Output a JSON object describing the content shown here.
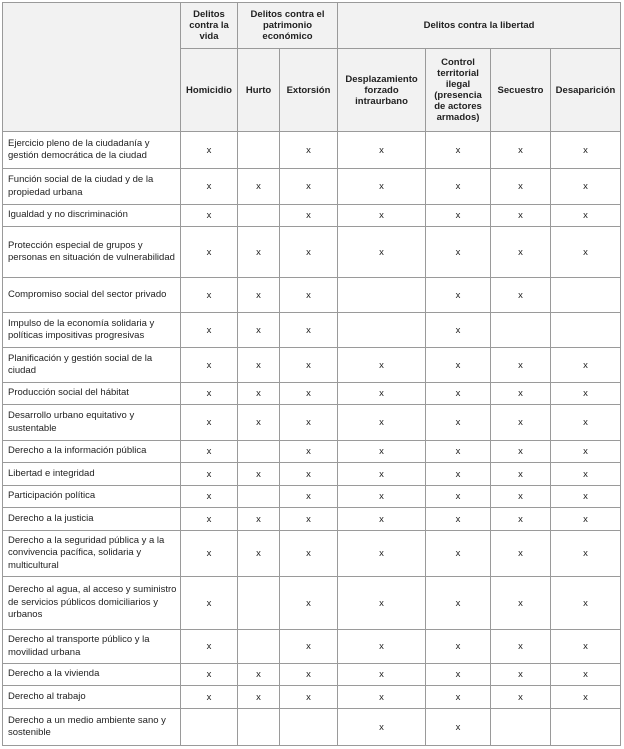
{
  "table": {
    "groups": [
      "Delitos contra la vida",
      "Delitos contra el patrimonio económico",
      "Delitos contra la libertad"
    ],
    "columns": [
      "Homicidio",
      "Hurto",
      "Extorsión",
      "Desplazamiento forzado intraurbano",
      "Control territorial ilegal (presencia de actores armados)",
      "Secuestro",
      "Desaparición"
    ],
    "rows": [
      {
        "label": "Ejercicio pleno de la ciudadanía y gestión democrática de la ciudad",
        "cells": [
          "x",
          null,
          "x",
          "x",
          "x",
          "x",
          "x"
        ]
      },
      {
        "label": "Función social de la ciudad y de la propiedad urbana",
        "cells": [
          "x",
          "x",
          "x",
          "x",
          "x",
          "x",
          "x"
        ]
      },
      {
        "label": "Igualdad y no discriminación",
        "cells": [
          "x",
          null,
          "x",
          "x",
          "x",
          "x",
          "x"
        ]
      },
      {
        "label": "Protección especial de grupos y personas en situación de vulnerabilidad",
        "cells": [
          "x",
          "x",
          "x",
          "x",
          "x",
          "x",
          "x"
        ]
      },
      {
        "label": "Compromiso social del sector privado",
        "cells": [
          "x",
          "x",
          "x",
          null,
          "x",
          "x",
          null
        ]
      },
      {
        "label": "Impulso de la economía solidaria y políticas impositivas progresivas",
        "cells": [
          "x",
          "x",
          "x",
          null,
          "x",
          null,
          null
        ]
      },
      {
        "label": "Planificación y gestión social de la ciudad",
        "cells": [
          "x",
          "x",
          "x",
          "x",
          "x",
          "x",
          "x"
        ]
      },
      {
        "label": "Producción social del hábitat",
        "cells": [
          "x",
          "x",
          "x",
          "x",
          "x",
          "x",
          "x"
        ]
      },
      {
        "label": "Desarrollo urbano equitativo y sustentable",
        "cells": [
          "x",
          "x",
          "x",
          "x",
          "x",
          "x",
          "x"
        ]
      },
      {
        "label": "Derecho a la información pública",
        "cells": [
          "x",
          null,
          "x",
          "x",
          "x",
          "x",
          "x"
        ]
      },
      {
        "label": "Libertad e integridad",
        "cells": [
          "x",
          "x",
          "x",
          "x",
          "x",
          "x",
          "x"
        ]
      },
      {
        "label": "Participación política",
        "cells": [
          "x",
          null,
          "x",
          "x",
          "x",
          "x",
          "x"
        ]
      },
      {
        "label": "Derecho a la justicia",
        "cells": [
          "x",
          "x",
          "x",
          "x",
          "x",
          "x",
          "x"
        ]
      },
      {
        "label": "Derecho a la seguridad pública y a la convivencia pacífica, solidaria y multicultural",
        "cells": [
          "x",
          "x",
          "x",
          "x",
          "x",
          "x",
          "x"
        ]
      },
      {
        "label": "Derecho al agua, al acceso y suministro de servicios públicos domiciliarios y urbanos",
        "cells": [
          "x",
          null,
          "x",
          "x",
          "x",
          "x",
          "x"
        ]
      },
      {
        "label": "Derecho al transporte público y la movilidad urbana",
        "cells": [
          "x",
          null,
          "x",
          "x",
          "x",
          "x",
          "x"
        ]
      },
      {
        "label": "Derecho a la vivienda",
        "cells": [
          "x",
          "x",
          "x",
          "x",
          "x",
          "x",
          "x"
        ]
      },
      {
        "label": "Derecho al trabajo",
        "cells": [
          "x",
          "x",
          "x",
          "x",
          "x",
          "x",
          "x"
        ]
      },
      {
        "label": "Derecho a un medio ambiente sano y sostenible",
        "cells": [
          null,
          null,
          null,
          "x",
          "x",
          null,
          null
        ]
      }
    ]
  }
}
